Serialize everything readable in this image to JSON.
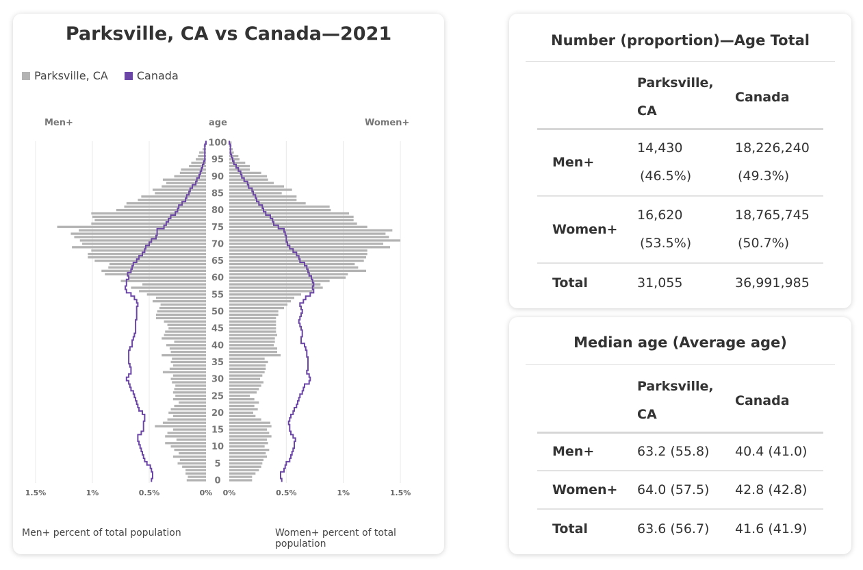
{
  "pyramid": {
    "title": "Parksville, CA vs Canada—2021",
    "legend": [
      {
        "label": "Parksville, CA",
        "color": "#b3b3b3"
      },
      {
        "label": "Canada",
        "color": "#6b46a6"
      }
    ],
    "men_label": "Men+",
    "age_label": "age",
    "women_label": "Women+",
    "men_axis_ticks": [
      "1.5%",
      "1%",
      "0.5%",
      "0%"
    ],
    "women_axis_ticks": [
      "0%",
      "0.5%",
      "1%",
      "1.5%"
    ],
    "men_footer": "Men+ percent of total population",
    "women_footer": "Women+ percent of total population"
  },
  "chart_data": {
    "type": "bar",
    "orientation": "horizontal-pyramid",
    "title": "Parksville, CA vs Canada—2021",
    "x_unit": "percent of total population",
    "xlim": [
      0,
      1.5
    ],
    "age_ticks": [
      0,
      5,
      10,
      15,
      20,
      25,
      30,
      35,
      40,
      45,
      50,
      55,
      60,
      65,
      70,
      75,
      80,
      85,
      90,
      95,
      100
    ],
    "ages": [
      0,
      1,
      2,
      3,
      4,
      5,
      6,
      7,
      8,
      9,
      10,
      11,
      12,
      13,
      14,
      15,
      16,
      17,
      18,
      19,
      20,
      21,
      22,
      23,
      24,
      25,
      26,
      27,
      28,
      29,
      30,
      31,
      32,
      33,
      34,
      35,
      36,
      37,
      38,
      39,
      40,
      41,
      42,
      43,
      44,
      45,
      46,
      47,
      48,
      49,
      50,
      51,
      52,
      53,
      54,
      55,
      56,
      57,
      58,
      59,
      60,
      61,
      62,
      63,
      64,
      65,
      66,
      67,
      68,
      69,
      70,
      71,
      72,
      73,
      74,
      75,
      76,
      77,
      78,
      79,
      80,
      81,
      82,
      83,
      84,
      85,
      86,
      87,
      88,
      89,
      90,
      91,
      92,
      93,
      94,
      95,
      96,
      97,
      98,
      99,
      100
    ],
    "series": [
      {
        "name": "Parksville, CA",
        "side": "men",
        "values": [
          0.17,
          0.16,
          0.18,
          0.18,
          0.21,
          0.25,
          0.23,
          0.29,
          0.24,
          0.28,
          0.31,
          0.36,
          0.26,
          0.36,
          0.34,
          0.29,
          0.45,
          0.38,
          0.34,
          0.29,
          0.33,
          0.31,
          0.28,
          0.24,
          0.29,
          0.27,
          0.29,
          0.28,
          0.27,
          0.3,
          0.31,
          0.29,
          0.38,
          0.32,
          0.29,
          0.31,
          0.3,
          0.39,
          0.31,
          0.32,
          0.35,
          0.28,
          0.39,
          0.37,
          0.36,
          0.33,
          0.34,
          0.37,
          0.44,
          0.44,
          0.43,
          0.41,
          0.4,
          0.47,
          0.44,
          0.52,
          0.59,
          0.66,
          0.56,
          0.75,
          0.68,
          0.89,
          0.92,
          0.86,
          0.85,
          0.98,
          1.04,
          1.04,
          1.01,
          1.18,
          1.09,
          1.11,
          1.16,
          1.19,
          1.12,
          1.31,
          1.01,
          0.98,
          1.0,
          1.01,
          0.79,
          0.72,
          0.7,
          0.6,
          0.57,
          0.45,
          0.47,
          0.39,
          0.35,
          0.38,
          0.28,
          0.23,
          0.22,
          0.15,
          0.13,
          0.09,
          0.07,
          0.06,
          0.03,
          0.02,
          0.01
        ]
      },
      {
        "name": "Parksville, CA",
        "side": "women",
        "values": [
          0.2,
          0.2,
          0.23,
          0.26,
          0.28,
          0.29,
          0.3,
          0.33,
          0.32,
          0.35,
          0.31,
          0.34,
          0.33,
          0.37,
          0.35,
          0.33,
          0.37,
          0.36,
          0.28,
          0.23,
          0.21,
          0.25,
          0.22,
          0.26,
          0.22,
          0.18,
          0.24,
          0.26,
          0.28,
          0.3,
          0.27,
          0.29,
          0.31,
          0.32,
          0.32,
          0.34,
          0.31,
          0.45,
          0.42,
          0.42,
          0.39,
          0.4,
          0.4,
          0.42,
          0.41,
          0.41,
          0.41,
          0.41,
          0.41,
          0.43,
          0.43,
          0.48,
          0.51,
          0.54,
          0.57,
          0.63,
          0.73,
          0.82,
          0.8,
          0.88,
          1.02,
          1.04,
          1.2,
          1.13,
          1.1,
          1.18,
          1.2,
          1.21,
          1.21,
          1.41,
          1.35,
          1.5,
          1.4,
          1.37,
          1.43,
          1.21,
          1.12,
          1.09,
          1.09,
          1.05,
          0.89,
          0.88,
          0.67,
          0.59,
          0.59,
          0.46,
          0.55,
          0.48,
          0.39,
          0.34,
          0.33,
          0.28,
          0.18,
          0.18,
          0.14,
          0.09,
          0.08,
          0.04,
          0.03,
          0.02,
          0.02
        ]
      },
      {
        "name": "Canada",
        "side": "men",
        "values": [
          0.48,
          0.47,
          0.47,
          0.48,
          0.49,
          0.52,
          0.54,
          0.55,
          0.56,
          0.57,
          0.58,
          0.59,
          0.6,
          0.6,
          0.57,
          0.55,
          0.55,
          0.55,
          0.54,
          0.54,
          0.56,
          0.59,
          0.6,
          0.61,
          0.62,
          0.63,
          0.64,
          0.66,
          0.67,
          0.68,
          0.7,
          0.68,
          0.66,
          0.66,
          0.67,
          0.68,
          0.68,
          0.68,
          0.68,
          0.67,
          0.65,
          0.65,
          0.64,
          0.63,
          0.62,
          0.62,
          0.62,
          0.62,
          0.61,
          0.61,
          0.61,
          0.61,
          0.6,
          0.61,
          0.63,
          0.66,
          0.7,
          0.71,
          0.7,
          0.7,
          0.68,
          0.69,
          0.66,
          0.65,
          0.64,
          0.61,
          0.59,
          0.56,
          0.54,
          0.53,
          0.5,
          0.48,
          0.44,
          0.43,
          0.43,
          0.37,
          0.35,
          0.33,
          0.31,
          0.27,
          0.25,
          0.24,
          0.21,
          0.18,
          0.17,
          0.15,
          0.14,
          0.12,
          0.09,
          0.08,
          0.06,
          0.05,
          0.04,
          0.03,
          0.02,
          0.01,
          0.01,
          0.01,
          0.01,
          0.01,
          0.0
        ]
      },
      {
        "name": "Canada",
        "side": "women",
        "values": [
          0.46,
          0.45,
          0.45,
          0.48,
          0.49,
          0.5,
          0.53,
          0.54,
          0.55,
          0.56,
          0.57,
          0.57,
          0.58,
          0.56,
          0.54,
          0.53,
          0.53,
          0.52,
          0.53,
          0.54,
          0.56,
          0.57,
          0.59,
          0.6,
          0.61,
          0.62,
          0.64,
          0.65,
          0.66,
          0.7,
          0.71,
          0.7,
          0.68,
          0.69,
          0.69,
          0.69,
          0.69,
          0.68,
          0.68,
          0.67,
          0.66,
          0.63,
          0.63,
          0.64,
          0.64,
          0.63,
          0.62,
          0.61,
          0.62,
          0.63,
          0.64,
          0.63,
          0.62,
          0.65,
          0.67,
          0.71,
          0.74,
          0.73,
          0.74,
          0.73,
          0.72,
          0.7,
          0.69,
          0.68,
          0.66,
          0.62,
          0.61,
          0.59,
          0.56,
          0.53,
          0.51,
          0.5,
          0.5,
          0.49,
          0.48,
          0.43,
          0.39,
          0.38,
          0.36,
          0.32,
          0.3,
          0.29,
          0.26,
          0.24,
          0.23,
          0.21,
          0.2,
          0.17,
          0.16,
          0.13,
          0.11,
          0.1,
          0.08,
          0.06,
          0.04,
          0.03,
          0.02,
          0.01,
          0.01,
          0.01,
          0.0
        ]
      }
    ]
  },
  "count_table": {
    "title": "Number (proportion)—Age Total",
    "col_parksville": "Parksville,",
    "col_parksville_2": "CA",
    "col_canada": "Canada",
    "rows": [
      {
        "label": "Men+",
        "p_num": "14,430",
        "p_pct": "(46.5%)",
        "c_num": "18,226,240",
        "c_pct": "(49.3%)"
      },
      {
        "label": "Women+",
        "p_num": "16,620",
        "p_pct": "(53.5%)",
        "c_num": "18,765,745",
        "c_pct": "(50.7%)"
      },
      {
        "label": "Total",
        "p_num": "31,055",
        "c_num": "36,991,985"
      }
    ]
  },
  "median_table": {
    "title": "Median age (Average age)",
    "col_parksville": "Parksville,",
    "col_parksville_2": "CA",
    "col_canada": "Canada",
    "rows": [
      {
        "label": "Men+",
        "p": "63.2 (55.8)",
        "c": "40.4 (41.0)"
      },
      {
        "label": "Women+",
        "p": "64.0 (57.5)",
        "c": "42.8 (42.8)"
      },
      {
        "label": "Total",
        "p": "63.6 (56.7)",
        "c": "41.6 (41.9)"
      }
    ]
  }
}
